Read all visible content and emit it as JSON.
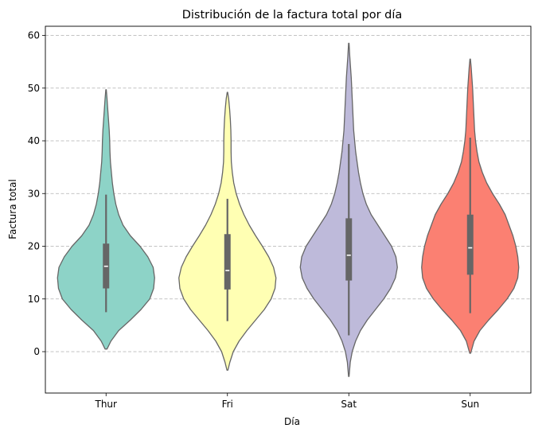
{
  "chart_data": {
    "type": "violin",
    "title": "Distribución de la factura total por día",
    "xlabel": "Día",
    "ylabel": "Factura total",
    "ylim": [
      -8,
      62
    ],
    "yticks": [
      0,
      10,
      20,
      30,
      40,
      50,
      60
    ],
    "grid": "y-dashed",
    "categories": [
      "Thur",
      "Fri",
      "Sat",
      "Sun"
    ],
    "colors": [
      "#8dd3c7",
      "#ffffb3",
      "#bebada",
      "#fb8072"
    ],
    "series": [
      {
        "category": "Thur",
        "color": "#8dd3c7",
        "min": 7.5,
        "q1": 12.0,
        "median": 16.2,
        "q3": 20.5,
        "max": 29.8,
        "kde_top": 49.7,
        "kde_bottom": 0.5,
        "density": [
          [
            0.5,
            0.02
          ],
          [
            2,
            0.1
          ],
          [
            4,
            0.26
          ],
          [
            6,
            0.5
          ],
          [
            8,
            0.72
          ],
          [
            10,
            0.9
          ],
          [
            12,
            0.98
          ],
          [
            14,
            1.0
          ],
          [
            16,
            0.97
          ],
          [
            18,
            0.86
          ],
          [
            20,
            0.7
          ],
          [
            22,
            0.5
          ],
          [
            24,
            0.35
          ],
          [
            26,
            0.26
          ],
          [
            28,
            0.2
          ],
          [
            30,
            0.16
          ],
          [
            32,
            0.13
          ],
          [
            34,
            0.11
          ],
          [
            36,
            0.09
          ],
          [
            38,
            0.08
          ],
          [
            40,
            0.075
          ],
          [
            42,
            0.065
          ],
          [
            44,
            0.05
          ],
          [
            46,
            0.035
          ],
          [
            48,
            0.02
          ],
          [
            49.7,
            0.005
          ]
        ]
      },
      {
        "category": "Fri",
        "color": "#ffffb3",
        "min": 5.8,
        "q1": 11.8,
        "median": 15.4,
        "q3": 22.3,
        "max": 29.0,
        "kde_top": 49.2,
        "kde_bottom": -3.5,
        "density": [
          [
            -3.5,
            0.01
          ],
          [
            -2,
            0.05
          ],
          [
            0,
            0.12
          ],
          [
            2,
            0.24
          ],
          [
            4,
            0.4
          ],
          [
            6,
            0.58
          ],
          [
            8,
            0.76
          ],
          [
            10,
            0.9
          ],
          [
            12,
            0.98
          ],
          [
            14,
            1.0
          ],
          [
            16,
            0.95
          ],
          [
            18,
            0.85
          ],
          [
            20,
            0.72
          ],
          [
            22,
            0.58
          ],
          [
            24,
            0.45
          ],
          [
            26,
            0.34
          ],
          [
            28,
            0.25
          ],
          [
            30,
            0.18
          ],
          [
            32,
            0.13
          ],
          [
            34,
            0.1
          ],
          [
            36,
            0.08
          ],
          [
            38,
            0.075
          ],
          [
            40,
            0.075
          ],
          [
            42,
            0.07
          ],
          [
            44,
            0.06
          ],
          [
            46,
            0.045
          ],
          [
            48,
            0.025
          ],
          [
            49.2,
            0.005
          ]
        ]
      },
      {
        "category": "Sat",
        "color": "#bebada",
        "min": 3.1,
        "q1": 13.5,
        "median": 18.3,
        "q3": 25.3,
        "max": 39.4,
        "kde_top": 58.5,
        "kde_bottom": -4.7,
        "density": [
          [
            -4.7,
            0.005
          ],
          [
            -2,
            0.03
          ],
          [
            0,
            0.07
          ],
          [
            2,
            0.14
          ],
          [
            4,
            0.24
          ],
          [
            6,
            0.38
          ],
          [
            8,
            0.55
          ],
          [
            10,
            0.72
          ],
          [
            12,
            0.86
          ],
          [
            14,
            0.96
          ],
          [
            16,
            1.0
          ],
          [
            18,
            0.97
          ],
          [
            20,
            0.88
          ],
          [
            22,
            0.74
          ],
          [
            24,
            0.6
          ],
          [
            26,
            0.46
          ],
          [
            28,
            0.36
          ],
          [
            30,
            0.29
          ],
          [
            32,
            0.24
          ],
          [
            34,
            0.2
          ],
          [
            36,
            0.17
          ],
          [
            38,
            0.14
          ],
          [
            40,
            0.12
          ],
          [
            42,
            0.1
          ],
          [
            44,
            0.09
          ],
          [
            46,
            0.08
          ],
          [
            48,
            0.07
          ],
          [
            50,
            0.06
          ],
          [
            52,
            0.05
          ],
          [
            54,
            0.035
          ],
          [
            56,
            0.02
          ],
          [
            58.5,
            0.005
          ]
        ]
      },
      {
        "category": "Sun",
        "color": "#fb8072",
        "min": 7.3,
        "q1": 14.6,
        "median": 19.7,
        "q3": 26.0,
        "max": 40.6,
        "kde_top": 55.5,
        "kde_bottom": -0.3,
        "density": [
          [
            -0.3,
            0.01
          ],
          [
            2,
            0.08
          ],
          [
            4,
            0.2
          ],
          [
            6,
            0.38
          ],
          [
            8,
            0.58
          ],
          [
            10,
            0.76
          ],
          [
            12,
            0.9
          ],
          [
            14,
            0.98
          ],
          [
            16,
            1.0
          ],
          [
            18,
            0.98
          ],
          [
            20,
            0.94
          ],
          [
            22,
            0.88
          ],
          [
            24,
            0.8
          ],
          [
            26,
            0.72
          ],
          [
            28,
            0.6
          ],
          [
            30,
            0.46
          ],
          [
            32,
            0.34
          ],
          [
            34,
            0.25
          ],
          [
            36,
            0.18
          ],
          [
            38,
            0.14
          ],
          [
            40,
            0.11
          ],
          [
            42,
            0.09
          ],
          [
            44,
            0.08
          ],
          [
            46,
            0.07
          ],
          [
            48,
            0.06
          ],
          [
            50,
            0.05
          ],
          [
            52,
            0.035
          ],
          [
            54,
            0.02
          ],
          [
            55.5,
            0.005
          ]
        ]
      }
    ]
  }
}
